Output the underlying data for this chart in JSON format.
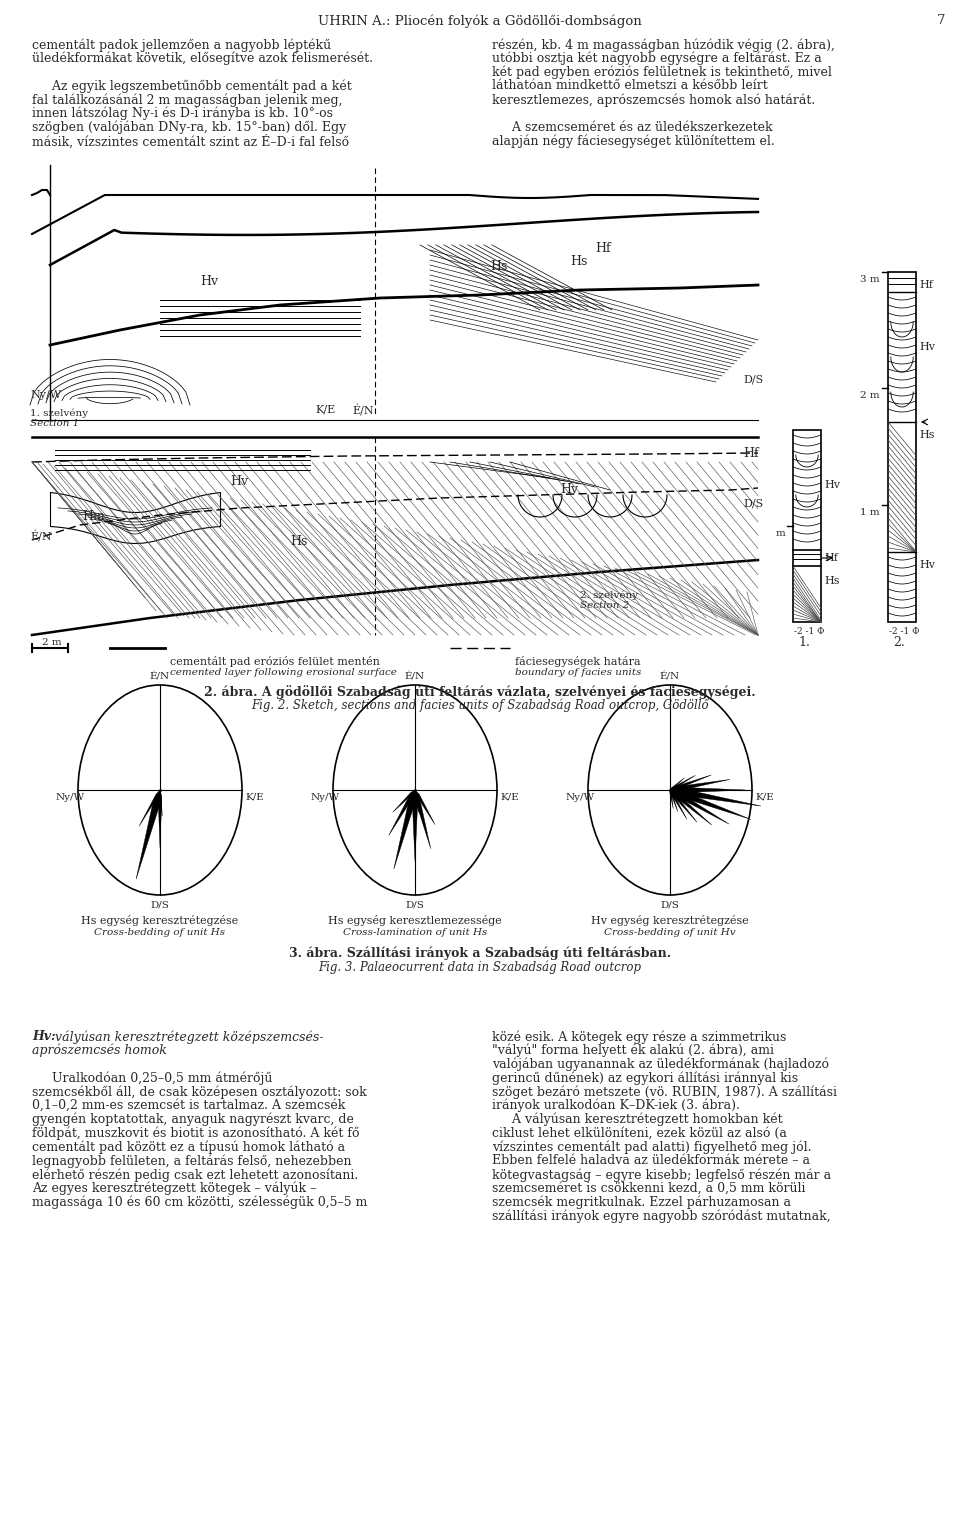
{
  "title_header": "UHRIN A.: Pliocén folyók a Gödöllői-dombságon",
  "page_number": "7",
  "bg_color": "#ffffff",
  "text_color": "#1a1a1a",
  "text_left_col": [
    "cementált padok jellemzően a nagyobb léptékű",
    "üledékformákat követik, elősegítve azok felismerését.",
    "",
    "     Az egyik legszembetűnőbb cementált pad a két",
    "fal találkozásánál 2 m magasságban jelenik meg,",
    "innen látszólag Ny-i és D-i irányba is kb. 10°-os",
    "szögben (valójában DNy-ra, kb. 15°-ban) dől. Egy",
    "másik, vízszintes cementált szint az É–D-i fal felső"
  ],
  "text_right_col": [
    "részén, kb. 4 m magasságban húzódik végig (2. ábra),",
    "utóbbi osztja két nagyobb egységre a feltárást. Ez a",
    "két pad egyben eróziós felületnek is tekinthető, mivel",
    "láthatóan mindkettő elmetszi a később leírt",
    "keresztlemezes, aprószemcsés homok alsó határát.",
    "",
    "     A szemcseméret és az üledékszerkezetek",
    "alapján négy fáciesegységet különítettem el."
  ],
  "fig2_caption_hu": "2. ábra. A gödöllői Szabadság úti feltárás vázlata, szelvényei és fáciesegységei.",
  "fig2_caption_en": "Fig. 2. Sketch, sections and facies units of Szabadság Road outcrop, Gödöllő",
  "fig3_caption_hu": "3. ábra. Szállítási irányok a Szabadság úti feltárásban.",
  "fig3_caption_en": "Fig. 3. Palaeocurrent data in Szabadság Road outcrop",
  "rose1_label_hu": "Hs egység keresztrétegzése",
  "rose1_label_en": "Cross-bedding of unit Hs",
  "rose2_label_hu": "Hs egység keresztlemezessége",
  "rose2_label_en": "Cross-lamination of unit Hs",
  "rose3_label_hu": "Hv egység keresztrétegzése",
  "rose3_label_en": "Cross-bedding of unit Hv",
  "text_bottom_left": [
    "Hv:",
    "vályúsan keresztrétegzett középszemcsés-",
    "aprószemcsés homok",
    "",
    "     Uralkodóan 0,25–0,5 mm átmérőjű",
    "szemcsékből áll, de csak középesen osztályozott: sok",
    "0,1–0,2 mm-es szemcsét is tartalmaz. A szemcsék",
    "gyengén koptatottak, anyaguk nagyrészt kvarc, de",
    "földpát, muszkovit és biotit is azonosítható. A két fő",
    "cementált pad között ez a típusú homok látható a",
    "legnagyobb felületen, a feltárás felső, nehezebben",
    "elérhető részén pedig csak ezt lehetett azonosítani.",
    "Az egyes keresztrétegzett kötegek – vályúk –",
    "magassága 10 és 60 cm közötti, szélességük 0,5–5 m"
  ],
  "text_bottom_right": [
    "közé esik. A kötegek egy része a szimmetrikus",
    "\"vályú\" forma helyett ék alakú (2. ábra), ami",
    "valójában ugyanannak az üledékformának (hajladozó",
    "gerincű dűnének) az egykori állítási iránnyal kis",
    "szöget bezáró metszete (vö. RUBIN, 1987). A szállítási",
    "irányok uralkodóan K–DK-iek (3. ábra).",
    "     A vályúsan keresztrétegzett homokban két",
    "ciklust lehet elkülöníteni, ezek közül az alsó (a",
    "vízszintes cementált pad alatti) figyelhető meg jól.",
    "Ebben felfelé haladva az üledékformák mérete – a",
    "kötegvastagság – egyre kisebb; legfelső részén már a",
    "szemcseméret is csökkenni kezd, a 0,5 mm körüli",
    "szemcsék megritkulnak. Ezzel párhuzamosan a",
    "szállítási irányok egyre nagyobb szóródást mutatnak,"
  ]
}
